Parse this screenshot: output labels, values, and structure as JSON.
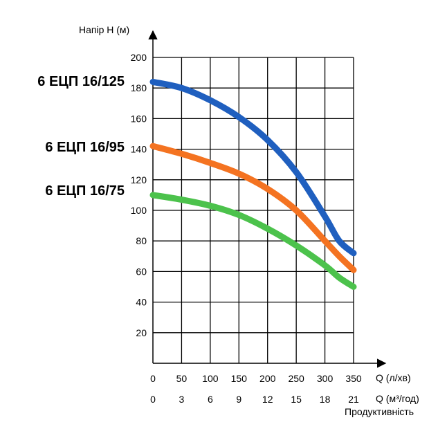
{
  "chart_data": {
    "type": "line",
    "ylabel": "Напір Н (м)",
    "xlabel": "Q (л/хв)",
    "xlabel_secondary": "Q (м³/год)",
    "xlabel_caption": "Продуктивність",
    "xlim": [
      0,
      350
    ],
    "ylim": [
      0,
      200
    ],
    "x_ticks": [
      "0",
      "50",
      "100",
      "150",
      "200",
      "250",
      "300",
      "350"
    ],
    "x_ticks_secondary": [
      "0",
      "3",
      "6",
      "9",
      "12",
      "15",
      "18",
      "21"
    ],
    "y_ticks": [
      "20",
      "40",
      "60",
      "80",
      "100",
      "120",
      "140",
      "160",
      "180",
      "200"
    ],
    "grid": true,
    "series": [
      {
        "name": "6 ЕЦП 16/125",
        "color": "#1f5fbf",
        "x": [
          0,
          50,
          100,
          150,
          200,
          250,
          300,
          325,
          350
        ],
        "y": [
          184,
          180,
          172,
          161,
          146,
          125,
          96,
          80,
          72
        ]
      },
      {
        "name": "6 ЕЦП 16/95",
        "color": "#f47321",
        "x": [
          0,
          50,
          100,
          150,
          200,
          250,
          300,
          325,
          350
        ],
        "y": [
          142,
          137,
          131,
          124,
          114,
          100,
          80,
          70,
          61
        ]
      },
      {
        "name": "6 ЕЦП 16/75",
        "color": "#4cc24c",
        "x": [
          0,
          50,
          100,
          150,
          200,
          250,
          300,
          325,
          350
        ],
        "y": [
          110,
          107,
          103,
          97,
          88,
          77,
          64,
          56,
          50
        ]
      }
    ]
  }
}
